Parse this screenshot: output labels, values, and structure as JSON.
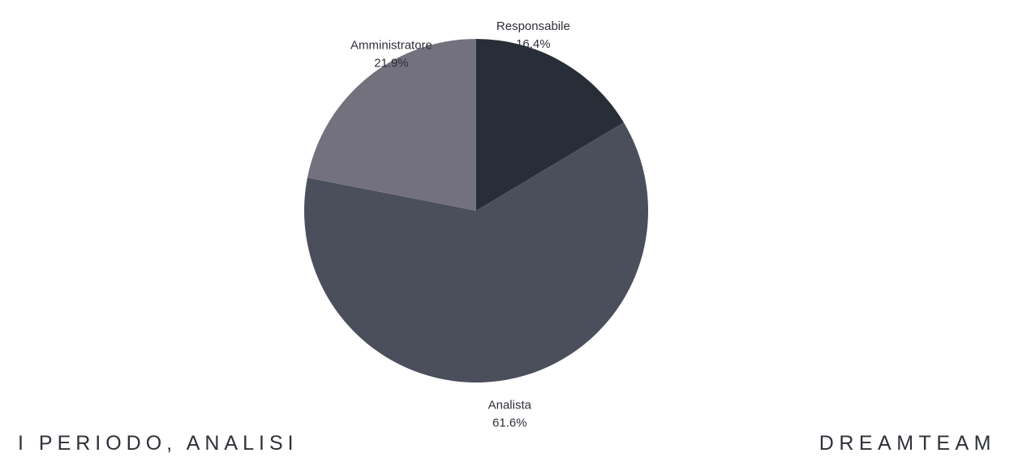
{
  "chart_data": {
    "type": "pie",
    "start_angle_deg": 0,
    "direction": "clockwise",
    "slices": [
      {
        "label": "Responsabile",
        "value": 16.4,
        "value_label": "16.4%",
        "color": "#272e38"
      },
      {
        "label": "Analista",
        "value": 61.6,
        "value_label": "61.6%",
        "color": "#4b4f5c"
      },
      {
        "label": "Amministratore",
        "value": 21.9,
        "value_label": "21.9%",
        "color": "#74717e"
      }
    ]
  },
  "footer": {
    "left_text": "I PERIODO, ANALISI",
    "right_text": "DREAMTEAM"
  }
}
